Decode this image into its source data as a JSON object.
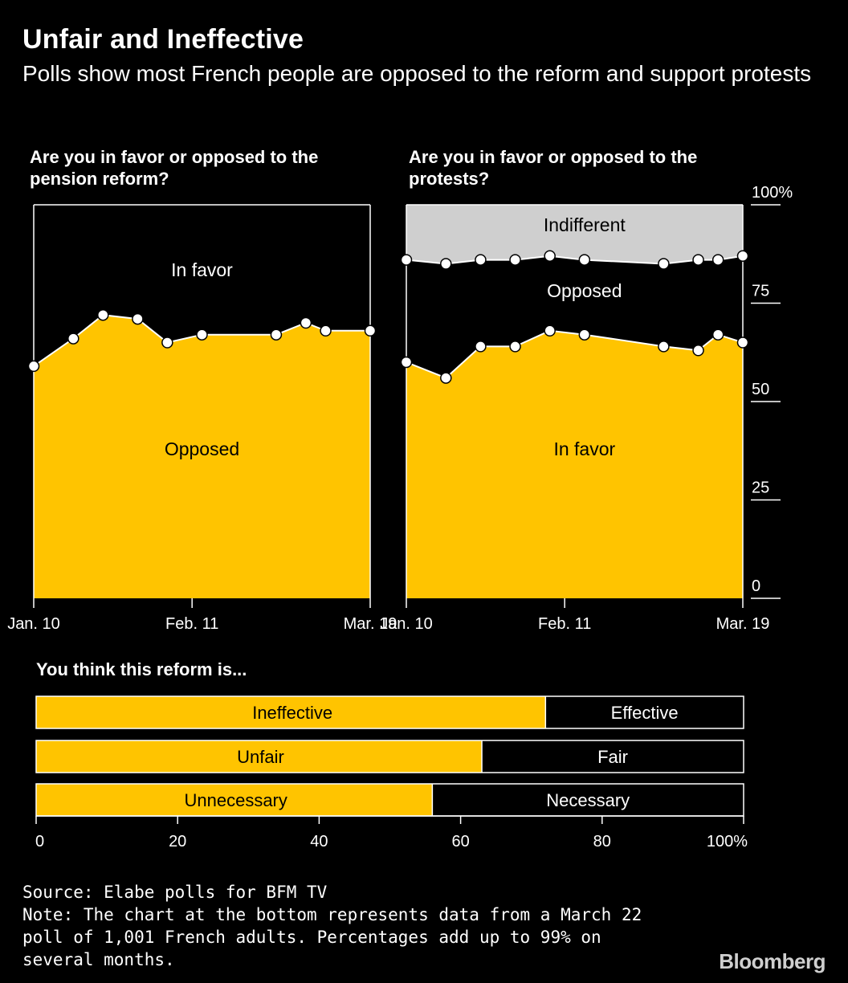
{
  "title": "Unfair and Ineffective",
  "subtitle": "Polls show most French people are opposed to the reform and support protests",
  "colors": {
    "accent": "#FFC400",
    "indifferent": "#CFCFCF",
    "background": "#000000",
    "line": "#FFFFFF"
  },
  "chart_data": [
    {
      "type": "area",
      "title": "Are you in favor or opposed to the pension reform?",
      "x_ticks": [
        "Jan. 10",
        "Feb. 11",
        "Mar. 19"
      ],
      "x_positions": [
        0,
        32,
        68
      ],
      "ylim": [
        0,
        100
      ],
      "series": [
        {
          "name": "Opposed",
          "label": "Opposed",
          "x": [
            0,
            8,
            14,
            21,
            27,
            34,
            49,
            55,
            59,
            68
          ],
          "values": [
            59,
            66,
            72,
            71,
            65,
            67,
            67,
            70,
            68,
            68
          ]
        },
        {
          "name": "In favor",
          "label": "In favor",
          "x": [
            0,
            8,
            14,
            21,
            27,
            34,
            49,
            55,
            59,
            68
          ],
          "values": [
            41,
            34,
            28,
            29,
            35,
            33,
            33,
            30,
            32,
            32
          ]
        }
      ]
    },
    {
      "type": "area",
      "title": "Are you in favor or opposed to the protests?",
      "x_ticks": [
        "Jan. 10",
        "Feb. 11",
        "Mar. 19"
      ],
      "x_positions": [
        0,
        32,
        68
      ],
      "ylim": [
        0,
        100
      ],
      "y_ticks": [
        "100%",
        "75",
        "50",
        "25",
        "0"
      ],
      "series": [
        {
          "name": "In favor",
          "label": "In favor",
          "x": [
            0,
            8,
            15,
            22,
            29,
            36,
            52,
            59,
            63,
            68
          ],
          "values": [
            60,
            56,
            64,
            64,
            68,
            67,
            64,
            63,
            67,
            65
          ]
        },
        {
          "name": "Opposed",
          "label": "Opposed",
          "x": [
            0,
            8,
            15,
            22,
            29,
            36,
            52,
            59,
            63,
            68
          ],
          "values": [
            26,
            29,
            22,
            22,
            19,
            19,
            21,
            23,
            19,
            22
          ]
        },
        {
          "name": "Indifferent",
          "label": "Indifferent",
          "x": [
            0,
            8,
            15,
            22,
            29,
            36,
            52,
            59,
            63,
            68
          ],
          "values": [
            14,
            15,
            14,
            14,
            13,
            14,
            15,
            14,
            14,
            13
          ]
        }
      ]
    },
    {
      "type": "bar",
      "orientation": "horizontal",
      "stacked": true,
      "title": "You think this reform is...",
      "xlim": [
        0,
        100
      ],
      "x_ticks": [
        "0",
        "20",
        "40",
        "60",
        "80",
        "100%"
      ],
      "rows": [
        {
          "left_label": "Ineffective",
          "left_value": 72,
          "right_label": "Effective",
          "right_value": 28
        },
        {
          "left_label": "Unfair",
          "left_value": 63,
          "right_label": "Fair",
          "right_value": 37
        },
        {
          "left_label": "Unnecessary",
          "left_value": 56,
          "right_label": "Necessary",
          "right_value": 44
        }
      ]
    }
  ],
  "source": "Source: Elabe polls for BFM TV",
  "note": "Note: The chart at the bottom represents data from a March 22 poll of 1,001 French adults. Percentages add up to 99% on several months.",
  "logo": "Bloomberg"
}
